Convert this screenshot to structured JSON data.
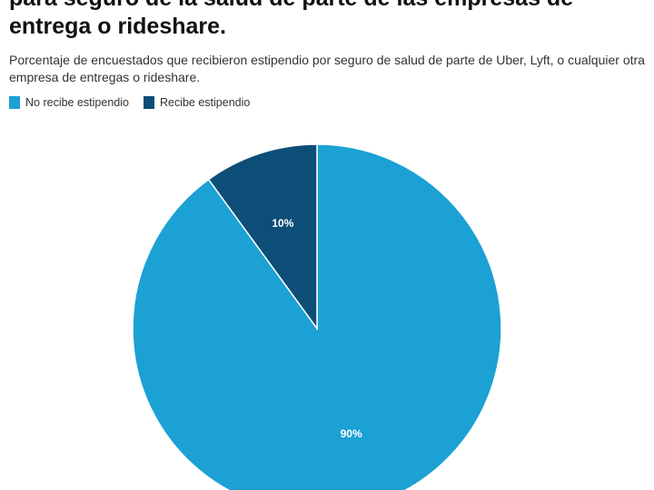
{
  "chart_data": {
    "type": "pie",
    "title_lines": [
      "para seguro de la salud de parte de las empresas de",
      "entrega o rideshare."
    ],
    "subtitle": "Porcentaje de encuestados que recibieron estipendio por seguro de salud de parte de Uber, Lyft, o cualquier otra empresa de entregas o rideshare.",
    "legend_placement": "top-left",
    "slices": [
      {
        "label": "No recibe estipendio",
        "value": 90,
        "data_label": "90%",
        "color": "#1ba1d3"
      },
      {
        "label": "Recibe estipendio",
        "value": 10,
        "data_label": "10%",
        "color": "#0c4e77"
      }
    ]
  }
}
